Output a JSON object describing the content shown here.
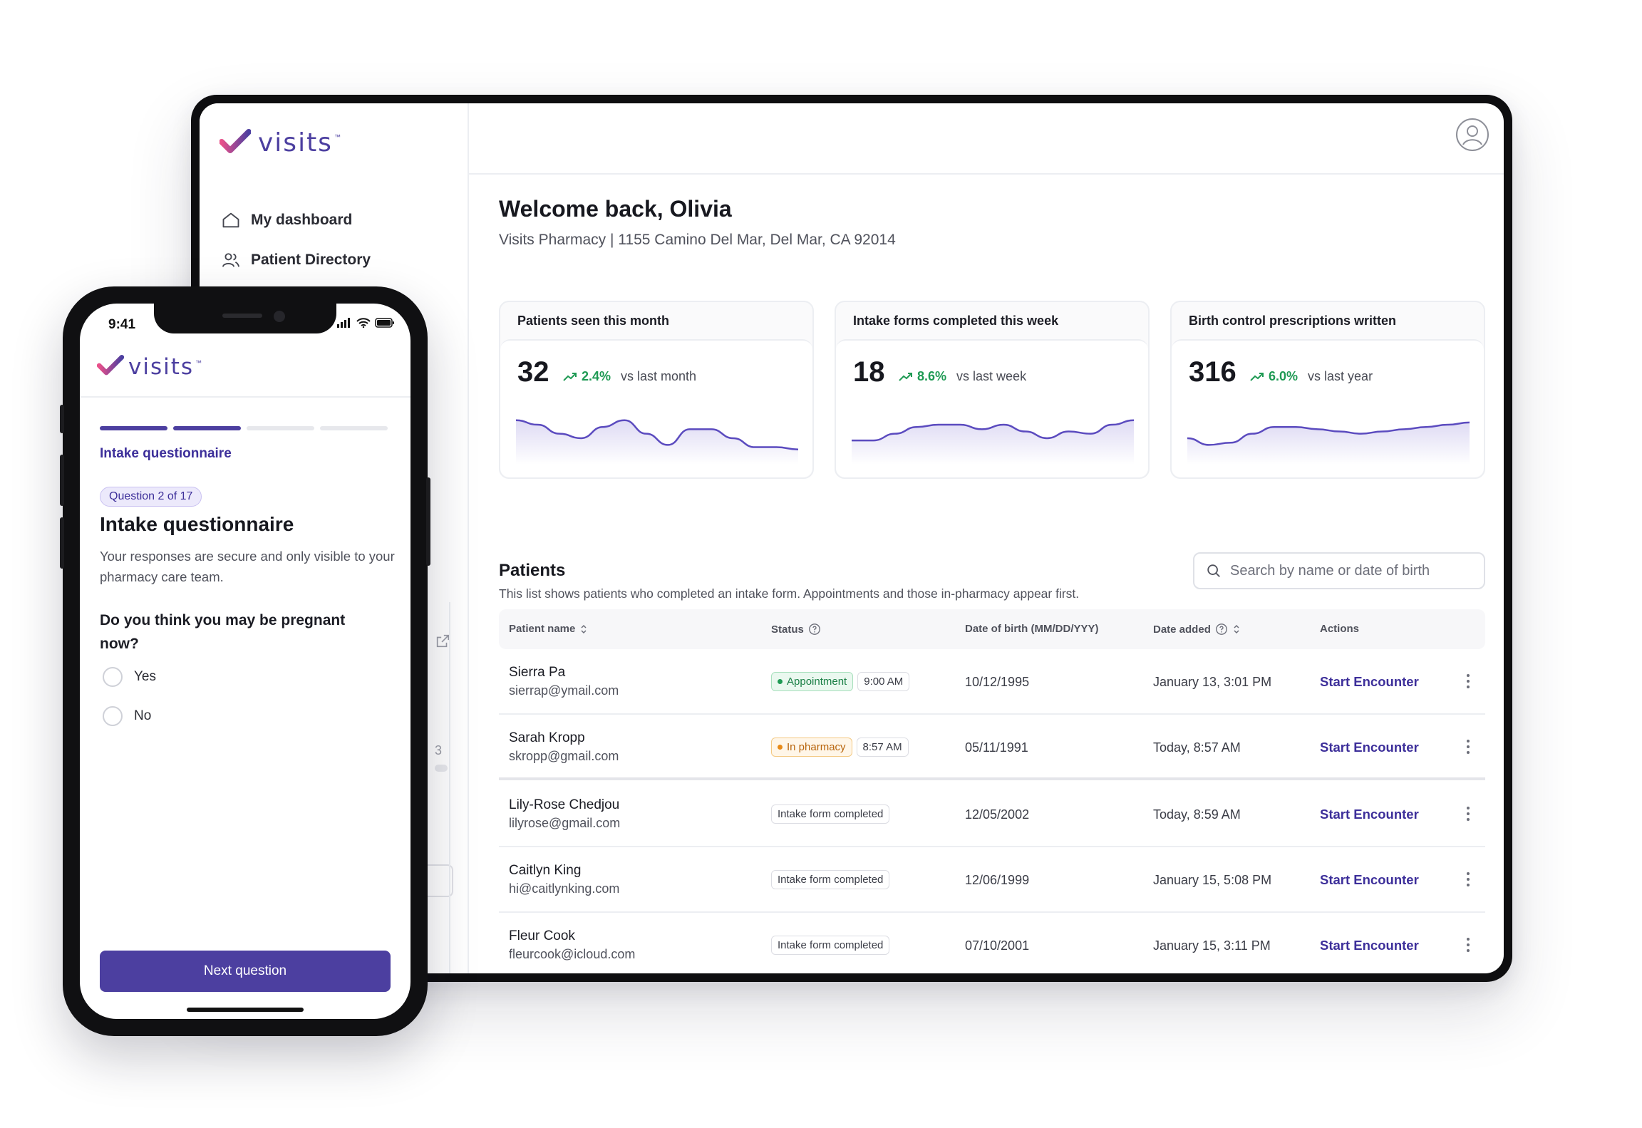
{
  "desktop": {
    "brand": {
      "name": "visits",
      "tm": "™",
      "colors": {
        "check_start": "#e8508a",
        "check_end": "#4c3fa0",
        "word": "#4c3fa0"
      }
    },
    "nav": [
      {
        "label": "My dashboard",
        "icon": "home-icon"
      },
      {
        "label": "Patient Directory",
        "icon": "users-icon"
      }
    ],
    "user": {
      "icon": "user-avatar-icon"
    },
    "welcome": "Welcome back, Olivia",
    "address": "Visits Pharmacy | 1155 Camino Del Mar, Del Mar, CA 92014",
    "stats": [
      {
        "title": "Patients seen this month",
        "value": "32",
        "delta": "2.4%",
        "compare": "vs last month",
        "trend": [
          0.75,
          0.65,
          0.45,
          0.35,
          0.6,
          0.75,
          0.45,
          0.2,
          0.55,
          0.55,
          0.35,
          0.15,
          0.15,
          0.1
        ]
      },
      {
        "title": "Intake forms completed this week",
        "value": "18",
        "delta": "8.6%",
        "compare": "vs last week",
        "trend": [
          0.3,
          0.3,
          0.45,
          0.6,
          0.65,
          0.65,
          0.55,
          0.65,
          0.5,
          0.35,
          0.5,
          0.45,
          0.65,
          0.75
        ]
      },
      {
        "title": "Birth control prescriptions written",
        "value": "316",
        "delta": "6.0%",
        "compare": "vs last year",
        "trend": [
          0.35,
          0.2,
          0.25,
          0.45,
          0.6,
          0.6,
          0.55,
          0.5,
          0.45,
          0.5,
          0.55,
          0.6,
          0.65,
          0.7
        ]
      }
    ],
    "patients": {
      "title": "Patients",
      "subtitle": "This list shows patients who completed an intake form. Appointments and those in-pharmacy appear first.",
      "search_placeholder": "Search by name or date of birth",
      "columns": {
        "name": "Patient name",
        "status": "Status",
        "dob": "Date of birth (MM/DD/YYY)",
        "added": "Date added",
        "actions": "Actions"
      },
      "rows": [
        {
          "name": "Sierra Pa",
          "email": "sierrap@ymail.com",
          "status": "Appointment",
          "status_kind": "green",
          "time": "9:00 AM",
          "dob": "10/12/1995",
          "added": "January 13, 3:01 PM",
          "action": "Start Encounter"
        },
        {
          "name": "Sarah Kropp",
          "email": "skropp@gmail.com",
          "status": "In pharmacy",
          "status_kind": "orange",
          "time": "8:57 AM",
          "dob": "05/11/1991",
          "added": "Today, 8:57 AM",
          "action": "Start Encounter"
        },
        {
          "name": "Lily-Rose Chedjou",
          "email": "lilyrose@gmail.com",
          "status": "Intake form completed",
          "status_kind": "neutral",
          "time": "",
          "dob": "12/05/2002",
          "added": "Today, 8:59 AM",
          "action": "Start Encounter"
        },
        {
          "name": "Caitlyn King",
          "email": "hi@caitlynking.com",
          "status": "Intake form completed",
          "status_kind": "neutral",
          "time": "",
          "dob": "12/06/1999",
          "added": "January 15, 5:08 PM",
          "action": "Start Encounter"
        },
        {
          "name": "Fleur Cook",
          "email": "fleurcook@icloud.com",
          "status": "Intake form completed",
          "status_kind": "neutral",
          "time": "",
          "dob": "07/10/2001",
          "added": "January 15, 3:11 PM",
          "action": "Start Encounter"
        }
      ]
    },
    "peek_text": "3"
  },
  "phone": {
    "time": "9:41",
    "brand": "visits",
    "tm": "™",
    "progress": {
      "total_segments": 4,
      "active_segments": 2
    },
    "step_label": "Intake questionnaire",
    "question_badge": "Question 2 of 17",
    "title": "Intake questionnaire",
    "description": "Your responses are secure and only visible to your pharmacy care team.",
    "question": "Do you think you may be pregnant now?",
    "options": [
      "Yes",
      "No"
    ],
    "next_label": "Next question",
    "colors": {
      "accent": "#4c3fa0"
    }
  }
}
